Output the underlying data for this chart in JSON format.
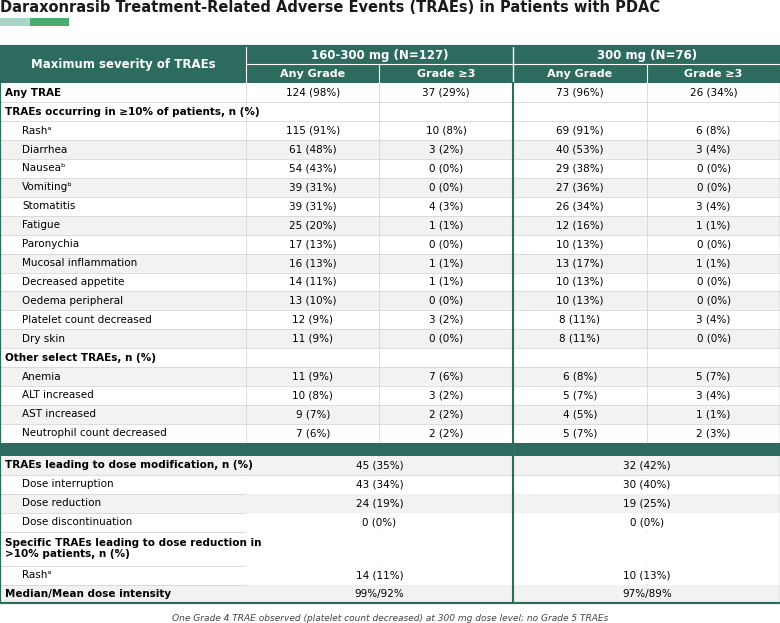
{
  "title": "Daraxonrasib Treatment-Related Adverse Events (TRAEs) in Patients with PDAC",
  "footnote": "One Grade 4 TRAE observed (platelet count decreased) at 300 mg dose level; no Grade 5 TRAEs",
  "header_color": "#2d6b5e",
  "green_bar_left": "#a8d5c8",
  "green_bar_right": "#4aab6e",
  "col_groups": [
    {
      "label": "160-300 mg (N=127)"
    },
    {
      "label": "300 mg (N=76)"
    }
  ],
  "col_headers": [
    "Any Grade",
    "Grade ≥3",
    "Any Grade",
    "Grade ≥3"
  ],
  "row_label_header": "Maximum severity of TRAEs",
  "rows": [
    {
      "label": "Any TRAE",
      "bold": true,
      "indent": 0,
      "data": [
        "124 (98%)",
        "37 (29%)",
        "73 (96%)",
        "26 (34%)"
      ],
      "sep_after": false,
      "merged": false
    },
    {
      "label": "TRAEs occurring in ≥10% of patients, n (%)",
      "bold": true,
      "indent": 0,
      "data": [
        "",
        "",
        "",
        ""
      ],
      "sep_after": false,
      "merged": false
    },
    {
      "label": "Rashᵃ",
      "bold": false,
      "indent": 1,
      "data": [
        "115 (91%)",
        "10 (8%)",
        "69 (91%)",
        "6 (8%)"
      ],
      "sep_after": false,
      "merged": false
    },
    {
      "label": "Diarrhea",
      "bold": false,
      "indent": 1,
      "data": [
        "61 (48%)",
        "3 (2%)",
        "40 (53%)",
        "3 (4%)"
      ],
      "sep_after": false,
      "merged": false
    },
    {
      "label": "Nauseaᵇ",
      "bold": false,
      "indent": 1,
      "data": [
        "54 (43%)",
        "0 (0%)",
        "29 (38%)",
        "0 (0%)"
      ],
      "sep_after": false,
      "merged": false
    },
    {
      "label": "Vomitingᵇ",
      "bold": false,
      "indent": 1,
      "data": [
        "39 (31%)",
        "0 (0%)",
        "27 (36%)",
        "0 (0%)"
      ],
      "sep_after": false,
      "merged": false
    },
    {
      "label": "Stomatitis",
      "bold": false,
      "indent": 1,
      "data": [
        "39 (31%)",
        "4 (3%)",
        "26 (34%)",
        "3 (4%)"
      ],
      "sep_after": false,
      "merged": false
    },
    {
      "label": "Fatigue",
      "bold": false,
      "indent": 1,
      "data": [
        "25 (20%)",
        "1 (1%)",
        "12 (16%)",
        "1 (1%)"
      ],
      "sep_after": false,
      "merged": false
    },
    {
      "label": "Paronychia",
      "bold": false,
      "indent": 1,
      "data": [
        "17 (13%)",
        "0 (0%)",
        "10 (13%)",
        "0 (0%)"
      ],
      "sep_after": false,
      "merged": false
    },
    {
      "label": "Mucosal inflammation",
      "bold": false,
      "indent": 1,
      "data": [
        "16 (13%)",
        "1 (1%)",
        "13 (17%)",
        "1 (1%)"
      ],
      "sep_after": false,
      "merged": false
    },
    {
      "label": "Decreased appetite",
      "bold": false,
      "indent": 1,
      "data": [
        "14 (11%)",
        "1 (1%)",
        "10 (13%)",
        "0 (0%)"
      ],
      "sep_after": false,
      "merged": false
    },
    {
      "label": "Oedema peripheral",
      "bold": false,
      "indent": 1,
      "data": [
        "13 (10%)",
        "0 (0%)",
        "10 (13%)",
        "0 (0%)"
      ],
      "sep_after": false,
      "merged": false
    },
    {
      "label": "Platelet count decreased",
      "bold": false,
      "indent": 1,
      "data": [
        "12 (9%)",
        "3 (2%)",
        "8 (11%)",
        "3 (4%)"
      ],
      "sep_after": false,
      "merged": false
    },
    {
      "label": "Dry skin",
      "bold": false,
      "indent": 1,
      "data": [
        "11 (9%)",
        "0 (0%)",
        "8 (11%)",
        "0 (0%)"
      ],
      "sep_after": false,
      "merged": false
    },
    {
      "label": "Other select TRAEs, n (%)",
      "bold": true,
      "indent": 0,
      "data": [
        "",
        "",
        "",
        ""
      ],
      "sep_after": false,
      "merged": false
    },
    {
      "label": "Anemia",
      "bold": false,
      "indent": 1,
      "data": [
        "11 (9%)",
        "7 (6%)",
        "6 (8%)",
        "5 (7%)"
      ],
      "sep_after": false,
      "merged": false
    },
    {
      "label": "ALT increased",
      "bold": false,
      "indent": 1,
      "data": [
        "10 (8%)",
        "3 (2%)",
        "5 (7%)",
        "3 (4%)"
      ],
      "sep_after": false,
      "merged": false
    },
    {
      "label": "AST increased",
      "bold": false,
      "indent": 1,
      "data": [
        "9 (7%)",
        "2 (2%)",
        "4 (5%)",
        "1 (1%)"
      ],
      "sep_after": false,
      "merged": false
    },
    {
      "label": "Neutrophil count decreased",
      "bold": false,
      "indent": 1,
      "data": [
        "7 (6%)",
        "2 (2%)",
        "5 (7%)",
        "2 (3%)"
      ],
      "sep_after": true,
      "merged": false
    },
    {
      "label": "TRAEs leading to dose modification, n (%)",
      "bold": true,
      "indent": 0,
      "data": [
        "45 (35%)",
        "",
        "32 (42%)",
        ""
      ],
      "sep_after": false,
      "merged": true
    },
    {
      "label": "Dose interruption",
      "bold": false,
      "indent": 1,
      "data": [
        "43 (34%)",
        "",
        "30 (40%)",
        ""
      ],
      "sep_after": false,
      "merged": true
    },
    {
      "label": "Dose reduction",
      "bold": false,
      "indent": 1,
      "data": [
        "24 (19%)",
        "",
        "19 (25%)",
        ""
      ],
      "sep_after": false,
      "merged": true
    },
    {
      "label": "Dose discontinuation",
      "bold": false,
      "indent": 1,
      "data": [
        "0 (0%)",
        "",
        "0 (0%)",
        ""
      ],
      "sep_after": false,
      "merged": true
    },
    {
      "label": "Specific TRAEs leading to dose reduction in\n>10% patients, n (%)",
      "bold": true,
      "indent": 0,
      "data": [
        "",
        "",
        "",
        ""
      ],
      "sep_after": false,
      "merged": true,
      "two_line": true
    },
    {
      "label": "Rashᵃ",
      "bold": false,
      "indent": 1,
      "data": [
        "14 (11%)",
        "",
        "10 (13%)",
        ""
      ],
      "sep_after": false,
      "merged": true
    },
    {
      "label": "Median/Mean dose intensity",
      "bold": true,
      "indent": 0,
      "data": [
        "99%/92%",
        "",
        "97%/89%",
        ""
      ],
      "sep_after": false,
      "merged": true
    }
  ]
}
